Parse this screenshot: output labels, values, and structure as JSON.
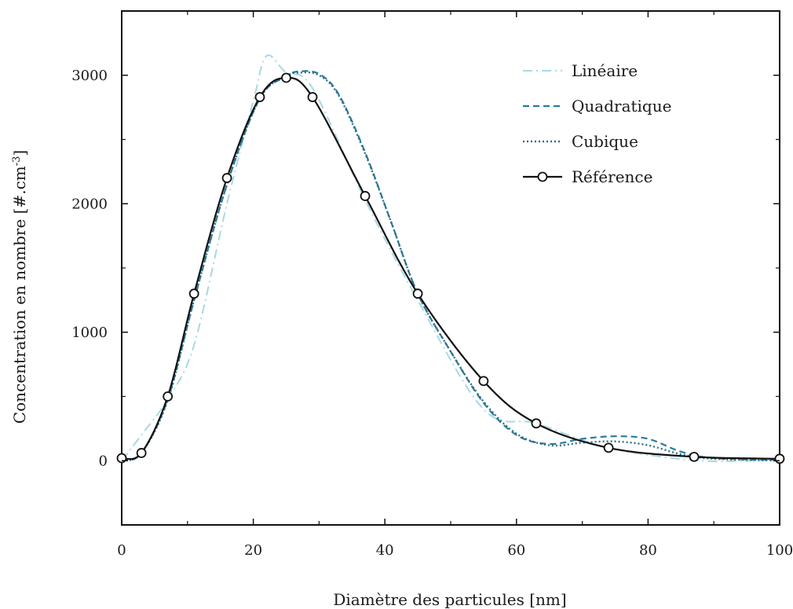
{
  "chart_data": {
    "type": "line",
    "xlabel": "Diamètre des particules [nm]",
    "ylabel_main": "Concentration en nombre [#.cm",
    "ylabel_sup": "-3",
    "ylabel_end": "]",
    "xlim": [
      0,
      100
    ],
    "ylim": [
      -500,
      3500
    ],
    "x_ticks": [
      0,
      20,
      40,
      60,
      80,
      100
    ],
    "y_ticks": [
      0,
      1000,
      2000,
      3000
    ],
    "legend_position": "top-right",
    "grid": false,
    "series": [
      {
        "name": "Linéaire",
        "color": "#a9d8e3",
        "dash": "dash-dot",
        "points": [
          [
            0,
            0
          ],
          [
            3,
            200
          ],
          [
            7,
            480
          ],
          [
            11,
            900
          ],
          [
            16,
            2000
          ],
          [
            20,
            2800
          ],
          [
            22,
            3150
          ],
          [
            25,
            3020
          ],
          [
            29,
            2900
          ],
          [
            37,
            2030
          ],
          [
            45,
            1250
          ],
          [
            55,
            400
          ],
          [
            63,
            290
          ],
          [
            74,
            100
          ],
          [
            88,
            0
          ],
          [
            100,
            10
          ]
        ]
      },
      {
        "name": "Quadratique",
        "color": "#2a7a9a",
        "dash": "dashed",
        "points": [
          [
            0,
            0
          ],
          [
            3,
            60
          ],
          [
            7,
            480
          ],
          [
            11,
            1250
          ],
          [
            16,
            2150
          ],
          [
            21,
            2820
          ],
          [
            25,
            2990
          ],
          [
            27,
            3030
          ],
          [
            30,
            3010
          ],
          [
            33,
            2850
          ],
          [
            37,
            2400
          ],
          [
            41,
            1850
          ],
          [
            45,
            1300
          ],
          [
            50,
            850
          ],
          [
            55,
            450
          ],
          [
            60,
            200
          ],
          [
            65,
            130
          ],
          [
            70,
            170
          ],
          [
            75,
            190
          ],
          [
            80,
            170
          ],
          [
            85,
            70
          ],
          [
            90,
            20
          ],
          [
            100,
            5
          ]
        ]
      },
      {
        "name": "Cubique",
        "color": "#2f6f88",
        "dash": "dotted",
        "points": [
          [
            0,
            0
          ],
          [
            3,
            60
          ],
          [
            7,
            470
          ],
          [
            11,
            1250
          ],
          [
            16,
            2150
          ],
          [
            21,
            2820
          ],
          [
            25,
            2990
          ],
          [
            27,
            3020
          ],
          [
            30,
            3000
          ],
          [
            33,
            2840
          ],
          [
            37,
            2390
          ],
          [
            41,
            1850
          ],
          [
            45,
            1300
          ],
          [
            50,
            850
          ],
          [
            55,
            460
          ],
          [
            60,
            210
          ],
          [
            65,
            120
          ],
          [
            70,
            140
          ],
          [
            75,
            150
          ],
          [
            80,
            120
          ],
          [
            85,
            50
          ],
          [
            90,
            15
          ],
          [
            100,
            0
          ]
        ]
      },
      {
        "name": "Référence",
        "color": "#111111",
        "dash": "solid",
        "points": [
          [
            0,
            20
          ],
          [
            3,
            60
          ],
          [
            7,
            500
          ],
          [
            11,
            1300
          ],
          [
            16,
            2200
          ],
          [
            21,
            2830
          ],
          [
            25,
            2980
          ],
          [
            29,
            2830
          ],
          [
            37,
            2060
          ],
          [
            45,
            1300
          ],
          [
            55,
            620
          ],
          [
            63,
            290
          ],
          [
            74,
            100
          ],
          [
            87,
            30
          ],
          [
            100,
            15
          ]
        ],
        "markers": [
          [
            0,
            20
          ],
          [
            3,
            60
          ],
          [
            7,
            500
          ],
          [
            11,
            1300
          ],
          [
            16,
            2200
          ],
          [
            21,
            2830
          ],
          [
            25,
            2980
          ],
          [
            29,
            2830
          ],
          [
            37,
            2060
          ],
          [
            45,
            1300
          ],
          [
            55,
            620
          ],
          [
            63,
            290
          ],
          [
            74,
            100
          ],
          [
            87,
            30
          ],
          [
            100,
            15
          ]
        ]
      }
    ]
  }
}
